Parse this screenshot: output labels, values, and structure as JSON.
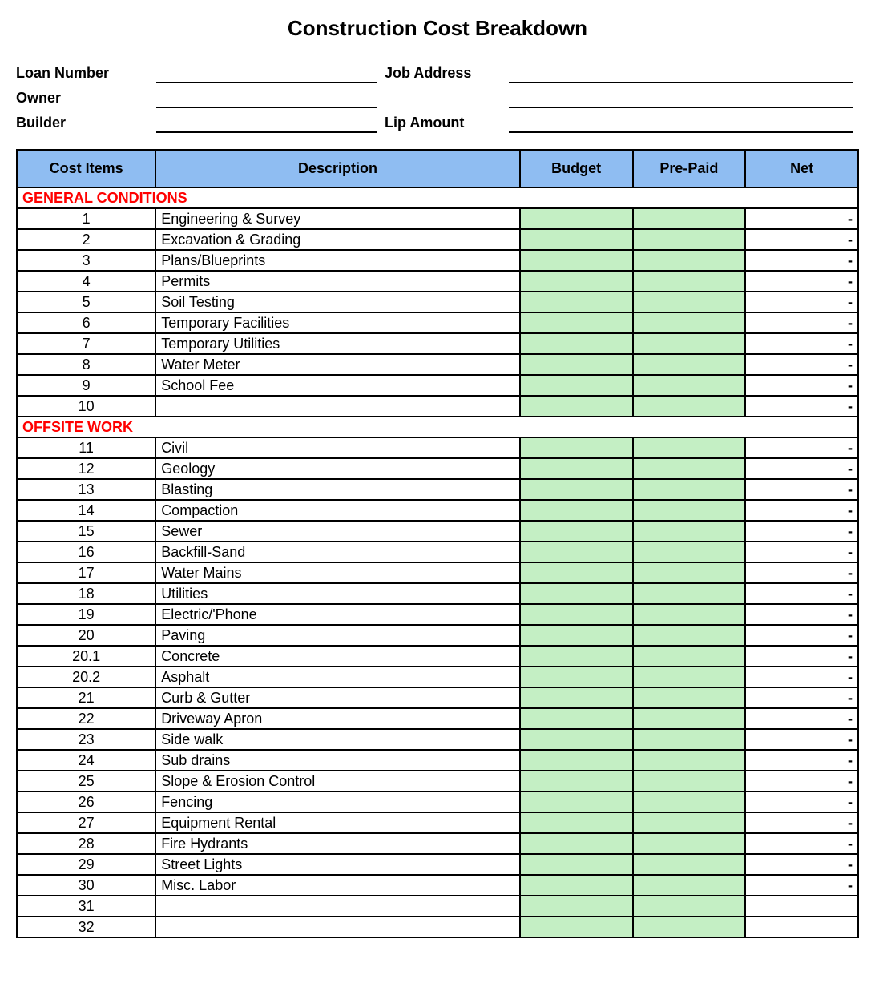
{
  "title": "Construction Cost Breakdown",
  "form": {
    "loanNumberLabel": "Loan Number",
    "jobAddressLabel": "Job Address",
    "ownerLabel": "Owner",
    "builderLabel": "Builder",
    "lipAmountLabel": "Lip Amount"
  },
  "colors": {
    "headerBg": "#8fbdf2",
    "fillBg": "#c4efc4",
    "sectionColor": "#ff0000",
    "border": "#000000"
  },
  "columns": {
    "costItems": "Cost  Items",
    "description": "Description",
    "budget": "Budget",
    "prePaid": "Pre-Paid",
    "net": "Net"
  },
  "sections": [
    {
      "title": "GENERAL CONDITIONS",
      "rows": [
        {
          "num": "1",
          "desc": "Engineering & Survey",
          "net": "-"
        },
        {
          "num": "2",
          "desc": "Excavation & Grading",
          "net": "-"
        },
        {
          "num": "3",
          "desc": "Plans/Blueprints",
          "net": "-"
        },
        {
          "num": "4",
          "desc": "Permits",
          "net": "-"
        },
        {
          "num": "5",
          "desc": "Soil Testing",
          "net": "-"
        },
        {
          "num": "6",
          "desc": "Temporary Facilities",
          "net": "-"
        },
        {
          "num": "7",
          "desc": "Temporary Utilities",
          "net": "-"
        },
        {
          "num": "8",
          "desc": "Water Meter",
          "net": "-"
        },
        {
          "num": "9",
          "desc": "School Fee",
          "net": "-"
        },
        {
          "num": "10",
          "desc": "",
          "net": "-"
        }
      ]
    },
    {
      "title": "OFFSITE WORK",
      "rows": [
        {
          "num": "11",
          "desc": "Civil",
          "net": "-"
        },
        {
          "num": "12",
          "desc": "Geology",
          "net": "-"
        },
        {
          "num": "13",
          "desc": "Blasting",
          "net": "-"
        },
        {
          "num": "14",
          "desc": "Compaction",
          "net": "-"
        },
        {
          "num": "15",
          "desc": "Sewer",
          "net": "-"
        },
        {
          "num": "16",
          "desc": "Backfill-Sand",
          "net": "-"
        },
        {
          "num": "17",
          "desc": "Water Mains",
          "net": "-"
        },
        {
          "num": "18",
          "desc": "Utilities",
          "net": "-"
        },
        {
          "num": "19",
          "desc": "Electric/'Phone",
          "net": "-"
        },
        {
          "num": "20",
          "desc": "Paving",
          "net": "-"
        },
        {
          "num": "20.1",
          "desc": "Concrete",
          "net": "-"
        },
        {
          "num": "20.2",
          "desc": "Asphalt",
          "net": "-"
        },
        {
          "num": "21",
          "desc": "Curb & Gutter",
          "net": "-"
        },
        {
          "num": "22",
          "desc": "Driveway Apron",
          "net": "-"
        },
        {
          "num": "23",
          "desc": "Side walk",
          "net": "-"
        },
        {
          "num": "24",
          "desc": "Sub drains",
          "net": "-"
        },
        {
          "num": "25",
          "desc": "Slope & Erosion Control",
          "net": "-"
        },
        {
          "num": "26",
          "desc": "Fencing",
          "net": "-"
        },
        {
          "num": "27",
          "desc": "Equipment Rental",
          "net": "-"
        },
        {
          "num": "28",
          "desc": "Fire Hydrants",
          "net": "-"
        },
        {
          "num": "29",
          "desc": "Street Lights",
          "net": "-"
        },
        {
          "num": "30",
          "desc": "Misc. Labor",
          "net": "-"
        },
        {
          "num": "31",
          "desc": "",
          "net": ""
        },
        {
          "num": "32",
          "desc": "",
          "net": ""
        }
      ]
    }
  ]
}
